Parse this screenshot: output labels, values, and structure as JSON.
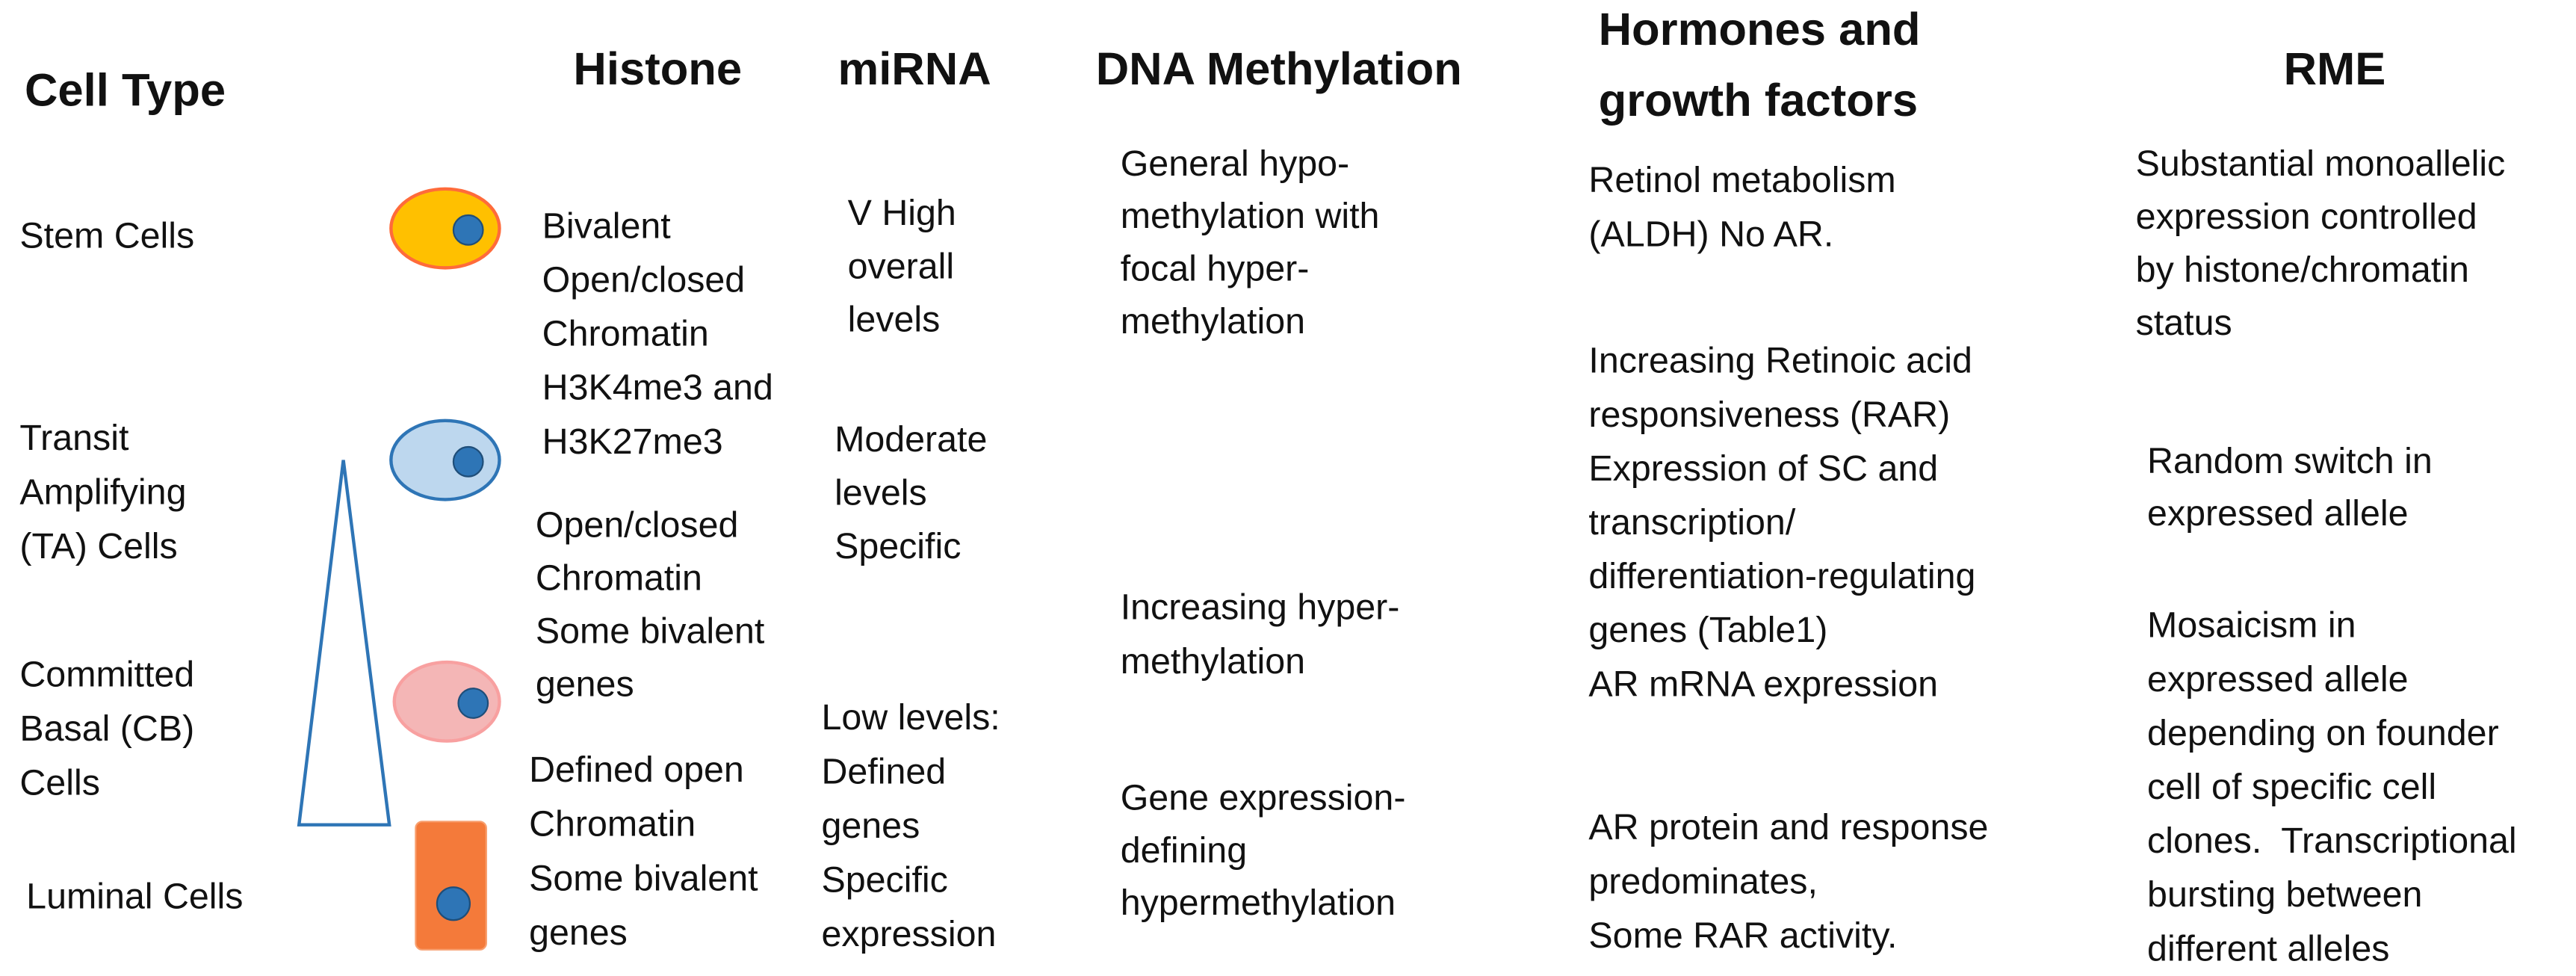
{
  "headers": {
    "cell_type": "Cell Type",
    "histone": "Histone",
    "mirna": "miRNA",
    "dna_methylation": "DNA Methylation",
    "hormones": [
      "Hormones and",
      "growth factors"
    ],
    "rme": "RME"
  },
  "cell_types": [
    [
      "Stem Cells"
    ],
    [
      "Transit",
      "Amplifying",
      "(TA) Cells"
    ],
    [
      "Committed",
      "Basal (CB)",
      "Cells"
    ],
    [
      "Luminal Cells"
    ]
  ],
  "histone": [
    [
      "Bivalent",
      "Open/closed",
      "Chromatin",
      "H3K4me3 and",
      "H3K27me3"
    ],
    [
      "Open/closed",
      "Chromatin",
      "Some bivalent",
      "genes"
    ],
    [
      "Defined open",
      "Chromatin",
      "Some bivalent",
      "genes"
    ]
  ],
  "mirna": [
    [
      "V High",
      "overall",
      "levels"
    ],
    [
      "Moderate",
      "levels",
      "Specific"
    ],
    [
      "Low levels:",
      "Defined",
      "genes",
      "Specific",
      "expression"
    ]
  ],
  "dna_methylation": [
    [
      "General hypo-",
      "methylation with",
      "focal hyper-",
      "methylation"
    ],
    [
      "Increasing hyper-",
      "methylation"
    ],
    [
      "Gene expression-",
      "defining",
      "hypermethylation"
    ]
  ],
  "hormones": [
    [
      "Retinol metabolism",
      "(ALDH) No AR."
    ],
    [
      "Increasing Retinoic acid",
      "responsiveness (RAR)",
      "Expression of SC and",
      "transcription/",
      "differentiation-regulating",
      "genes (Table1)",
      "AR mRNA expression"
    ],
    [
      "AR protein and response",
      "predominates,",
      "Some RAR activity."
    ]
  ],
  "rme": [
    [
      "Substantial monoallelic",
      "expression controlled",
      "by histone/chromatin",
      "status"
    ],
    [
      "Random switch in",
      "expressed allele"
    ],
    [
      "Mosaicism in",
      "expressed allele",
      "depending on founder",
      "cell of specific cell",
      "clones.  Transcriptional",
      "bursting between",
      "different alleles"
    ]
  ]
}
